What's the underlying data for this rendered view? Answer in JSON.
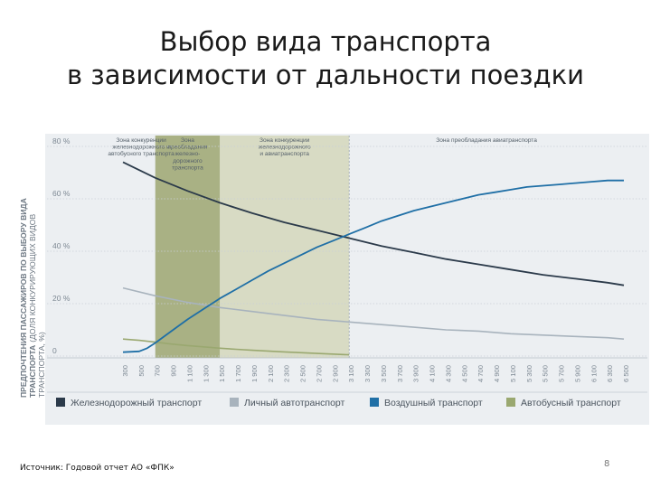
{
  "slide": {
    "title_line1": "Выбор вида транспорта",
    "title_line2": "в зависимости от дальности поездки",
    "source": "Источник: Годовой отчет АО «ФПК»",
    "page_number": "8"
  },
  "colors": {
    "rail": "#2b3a4a",
    "car": "#a8b3bd",
    "air": "#1f6fa6",
    "bus": "#9aa870",
    "zone_dark": "#a9b184",
    "zone_light": "#d8dbc4",
    "panel": "#eceff2",
    "grid": "#c9cfd6",
    "label": "#7d8893"
  },
  "chart_data": {
    "type": "line",
    "ylabel_bold": "ПРЕДПОЧТЕНИЯ ПАССАЖИРОВ ПО ВЫБОРУ ВИДА ТРАНСПОРТА",
    "ylabel_light": "(ДОЛЯ КОНКУРИРУЮЩИХ ВИДОВ ТРАНСПОРТА, %)",
    "xlabel": "",
    "ylim": [
      0,
      80
    ],
    "xlim": [
      300,
      6500
    ],
    "x_ticks": [
      300,
      500,
      700,
      900,
      1100,
      1300,
      1500,
      1700,
      1900,
      2100,
      2300,
      2500,
      2700,
      2900,
      3100,
      3300,
      3500,
      3700,
      3900,
      4100,
      4300,
      4500,
      4700,
      4900,
      5100,
      5300,
      5500,
      5700,
      5900,
      6100,
      6300,
      6500
    ],
    "x_tick_labels": [
      "300",
      "500",
      "700",
      "900",
      "1 100",
      "1 300",
      "1 500",
      "1 700",
      "1 900",
      "2 100",
      "2 300",
      "2 500",
      "2 700",
      "2 900",
      "3 100",
      "3 300",
      "3 500",
      "3 700",
      "3 900",
      "4 100",
      "4 300",
      "4 500",
      "4 700",
      "4 900",
      "5 100",
      "5 300",
      "5 500",
      "5 700",
      "5 900",
      "6 100",
      "6 300",
      "6 500"
    ],
    "y_ticks": [
      0,
      20,
      40,
      60,
      80
    ],
    "y_tick_labels": [
      "0",
      "20 %",
      "40 %",
      "60 %",
      "80 %"
    ],
    "zones": [
      {
        "label": "Зона конкуренции железнодорожного и автобусного транспорта",
        "x_from": 300,
        "x_to": 700,
        "style": "none"
      },
      {
        "label": "Зона преобладания железно-дорожного транспорта",
        "x_from": 700,
        "x_to": 1500,
        "style": "dark"
      },
      {
        "label": "Зона конкуренции железнодорожного и авиатранспорта",
        "x_from": 1500,
        "x_to": 3100,
        "style": "light"
      },
      {
        "label": "Зона преобладания авиатранспорта",
        "x_from": 3100,
        "x_to": 6500,
        "style": "none"
      }
    ],
    "zone_label_lines": [
      [
        "Зона конкуренции",
        "железнодорожного и",
        "автобусного транспорта"
      ],
      [
        "Зона",
        "преобладания",
        "железно-",
        "дорожного",
        "транспорта"
      ],
      [
        "Зона конкуренции",
        "железнодорожного",
        "и авиатранспорта"
      ],
      [
        "Зона преобладания авиатранспорта"
      ]
    ],
    "series": [
      {
        "name": "Железнодорожный транспорт",
        "color_key": "rail",
        "x": [
          300,
          700,
          1100,
          1500,
          1900,
          2300,
          2700,
          3100,
          3500,
          3900,
          4300,
          4700,
          5100,
          5500,
          5900,
          6300,
          6500
        ],
        "values": [
          74,
          68,
          63,
          58.5,
          54.5,
          51,
          48,
          45,
          42,
          39.5,
          37,
          35,
          33,
          31,
          29.5,
          28,
          27
        ]
      },
      {
        "name": "Личный автотранспорт",
        "color_key": "car",
        "x": [
          300,
          700,
          1100,
          1500,
          1900,
          2300,
          2700,
          3100,
          3500,
          3900,
          4300,
          4700,
          5100,
          5500,
          5900,
          6300,
          6500
        ],
        "values": [
          26,
          23,
          20.5,
          18.5,
          17,
          15.5,
          14,
          13,
          12,
          11,
          10,
          9.5,
          8.5,
          8,
          7.5,
          7,
          6.5
        ]
      },
      {
        "name": "Воздушный транспорт",
        "color_key": "air",
        "x": [
          300,
          500,
          600,
          700,
          900,
          1100,
          1300,
          1500,
          1700,
          1900,
          2100,
          2300,
          2500,
          2700,
          2900,
          3100,
          3300,
          3500,
          3700,
          3900,
          4100,
          4300,
          4500,
          4700,
          4900,
          5100,
          5300,
          5500,
          5700,
          5900,
          6100,
          6300,
          6500
        ],
        "values": [
          1.5,
          1.8,
          3,
          5,
          9.5,
          14,
          18,
          22,
          25.5,
          29,
          32.5,
          35.5,
          38.5,
          41.5,
          44,
          46.5,
          49,
          51.5,
          53.5,
          55.5,
          57,
          58.5,
          60,
          61.5,
          62.5,
          63.5,
          64.5,
          65,
          65.5,
          66,
          66.5,
          67,
          67
        ]
      },
      {
        "name": "Автобусный транспорт",
        "color_key": "bus",
        "x": [
          300,
          500,
          700,
          900,
          1100,
          1300,
          1500,
          1700,
          1900,
          2300,
          2700,
          3100
        ],
        "values": [
          6.5,
          6,
          5.3,
          4.6,
          4,
          3.5,
          3,
          2.6,
          2.2,
          1.6,
          1,
          0.5
        ]
      }
    ],
    "legend_position": "bottom",
    "grid": true
  }
}
